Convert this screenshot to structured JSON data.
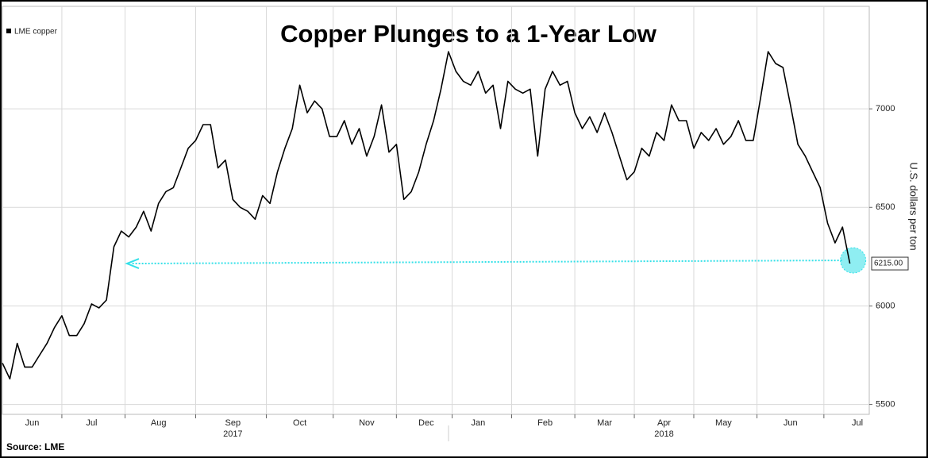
{
  "chart_data": {
    "type": "line",
    "title": "Copper Plunges to a 1-Year Low",
    "y_label": "U.S. dollars per ton",
    "source": "Source: LME",
    "categories": [
      null,
      null,
      null,
      null,
      "Jun",
      null,
      null,
      null,
      null,
      null,
      null,
      null,
      "Jul",
      null,
      null,
      null,
      null,
      null,
      null,
      null,
      null,
      "Aug",
      null,
      null,
      null,
      null,
      null,
      null,
      null,
      null,
      null,
      "Sep",
      null,
      null,
      null,
      null,
      null,
      null,
      null,
      null,
      "Oct",
      null,
      null,
      null,
      null,
      null,
      null,
      null,
      null,
      "Nov",
      null,
      null,
      null,
      null,
      null,
      null,
      null,
      "Dec",
      null,
      null,
      null,
      null,
      null,
      null,
      "Jan",
      null,
      null,
      null,
      null,
      null,
      null,
      null,
      null,
      "Feb",
      null,
      null,
      null,
      null,
      null,
      null,
      null,
      "Mar",
      null,
      null,
      null,
      null,
      null,
      null,
      null,
      "Apr",
      null,
      null,
      null,
      null,
      null,
      null,
      null,
      "May",
      null,
      null,
      null,
      null,
      null,
      null,
      null,
      null,
      "Jun",
      null,
      null,
      null,
      null,
      null,
      null,
      null,
      null,
      "Jul"
    ],
    "category_years": [
      null,
      null,
      null,
      null,
      null,
      null,
      null,
      null,
      null,
      null,
      null,
      null,
      null,
      null,
      null,
      null,
      null,
      null,
      null,
      null,
      null,
      null,
      null,
      null,
      null,
      null,
      null,
      null,
      null,
      null,
      null,
      "2017",
      null,
      null,
      null,
      null,
      null,
      null,
      null,
      null,
      null,
      null,
      null,
      null,
      null,
      null,
      null,
      null,
      null,
      null,
      null,
      null,
      null,
      null,
      null,
      null,
      null,
      null,
      null,
      null,
      null,
      null,
      null,
      null,
      null,
      null,
      null,
      null,
      null,
      null,
      null,
      null,
      null,
      null,
      null,
      null,
      null,
      null,
      null,
      null,
      null,
      null,
      null,
      null,
      null,
      null,
      null,
      null,
      null,
      "2018",
      null,
      null,
      null,
      null,
      null,
      null,
      null,
      null,
      null,
      null,
      null,
      null,
      null,
      null,
      null,
      null,
      null,
      null,
      null,
      null,
      null,
      null,
      null,
      null,
      null,
      null
    ],
    "series": [
      {
        "name": "LME copper",
        "color": "#000000",
        "values": [
          5710,
          5630,
          5810,
          5690,
          5690,
          5750,
          5810,
          5890,
          5950,
          5850,
          5850,
          5910,
          6010,
          5990,
          6030,
          6300,
          6380,
          6350,
          6400,
          6480,
          6380,
          6520,
          6580,
          6600,
          6700,
          6800,
          6840,
          6920,
          6920,
          6700,
          6740,
          6540,
          6500,
          6480,
          6440,
          6560,
          6520,
          6680,
          6800,
          6900,
          7120,
          6980,
          7040,
          7000,
          6860,
          6860,
          6940,
          6820,
          6900,
          6760,
          6860,
          7020,
          6780,
          6820,
          6540,
          6580,
          6680,
          6820,
          6940,
          7100,
          7290,
          7190,
          7140,
          7120,
          7190,
          7080,
          7120,
          6900,
          7140,
          7100,
          7080,
          7100,
          6760,
          7100,
          7190,
          7120,
          7140,
          6980,
          6900,
          6960,
          6880,
          6980,
          6880,
          6760,
          6640,
          6680,
          6800,
          6760,
          6880,
          6840,
          7020,
          6940,
          6940,
          6800,
          6880,
          6840,
          6900,
          6820,
          6860,
          6940,
          6840,
          6840,
          7060,
          7290,
          7230,
          7210,
          7020,
          6820,
          6760,
          6680,
          6600,
          6420,
          6320,
          6400,
          6215,
          null
        ],
        "value_labels": [
          null,
          null,
          null,
          null,
          null,
          null,
          null,
          null,
          null,
          null,
          null,
          null,
          null,
          null,
          null,
          null,
          null,
          null,
          null,
          null,
          null,
          null,
          null,
          null,
          null,
          null,
          null,
          null,
          null,
          null,
          null,
          null,
          null,
          null,
          null,
          null,
          null,
          null,
          null,
          null,
          null,
          null,
          null,
          null,
          null,
          null,
          null,
          null,
          null,
          null,
          null,
          null,
          null,
          null,
          null,
          null,
          null,
          null,
          null,
          null,
          null,
          null,
          null,
          null,
          null,
          null,
          null,
          null,
          null,
          null,
          null,
          null,
          null,
          null,
          null,
          null,
          null,
          null,
          null,
          null,
          null,
          null,
          null,
          null,
          null,
          null,
          null,
          null,
          null,
          null,
          null,
          null,
          null,
          null,
          null,
          null,
          null,
          null,
          null,
          null,
          null,
          null,
          null,
          null,
          null,
          null,
          null,
          null,
          null,
          null,
          null,
          null,
          null,
          null,
          "6215.00",
          null
        ]
      }
    ],
    "ylim": [
      5450,
      7520
    ],
    "yticks": [
      5500,
      6000,
      6500,
      7000
    ],
    "y_axis_side": "right",
    "grid": true,
    "legend": "top-left",
    "annotation_color": "#33e0e8"
  }
}
